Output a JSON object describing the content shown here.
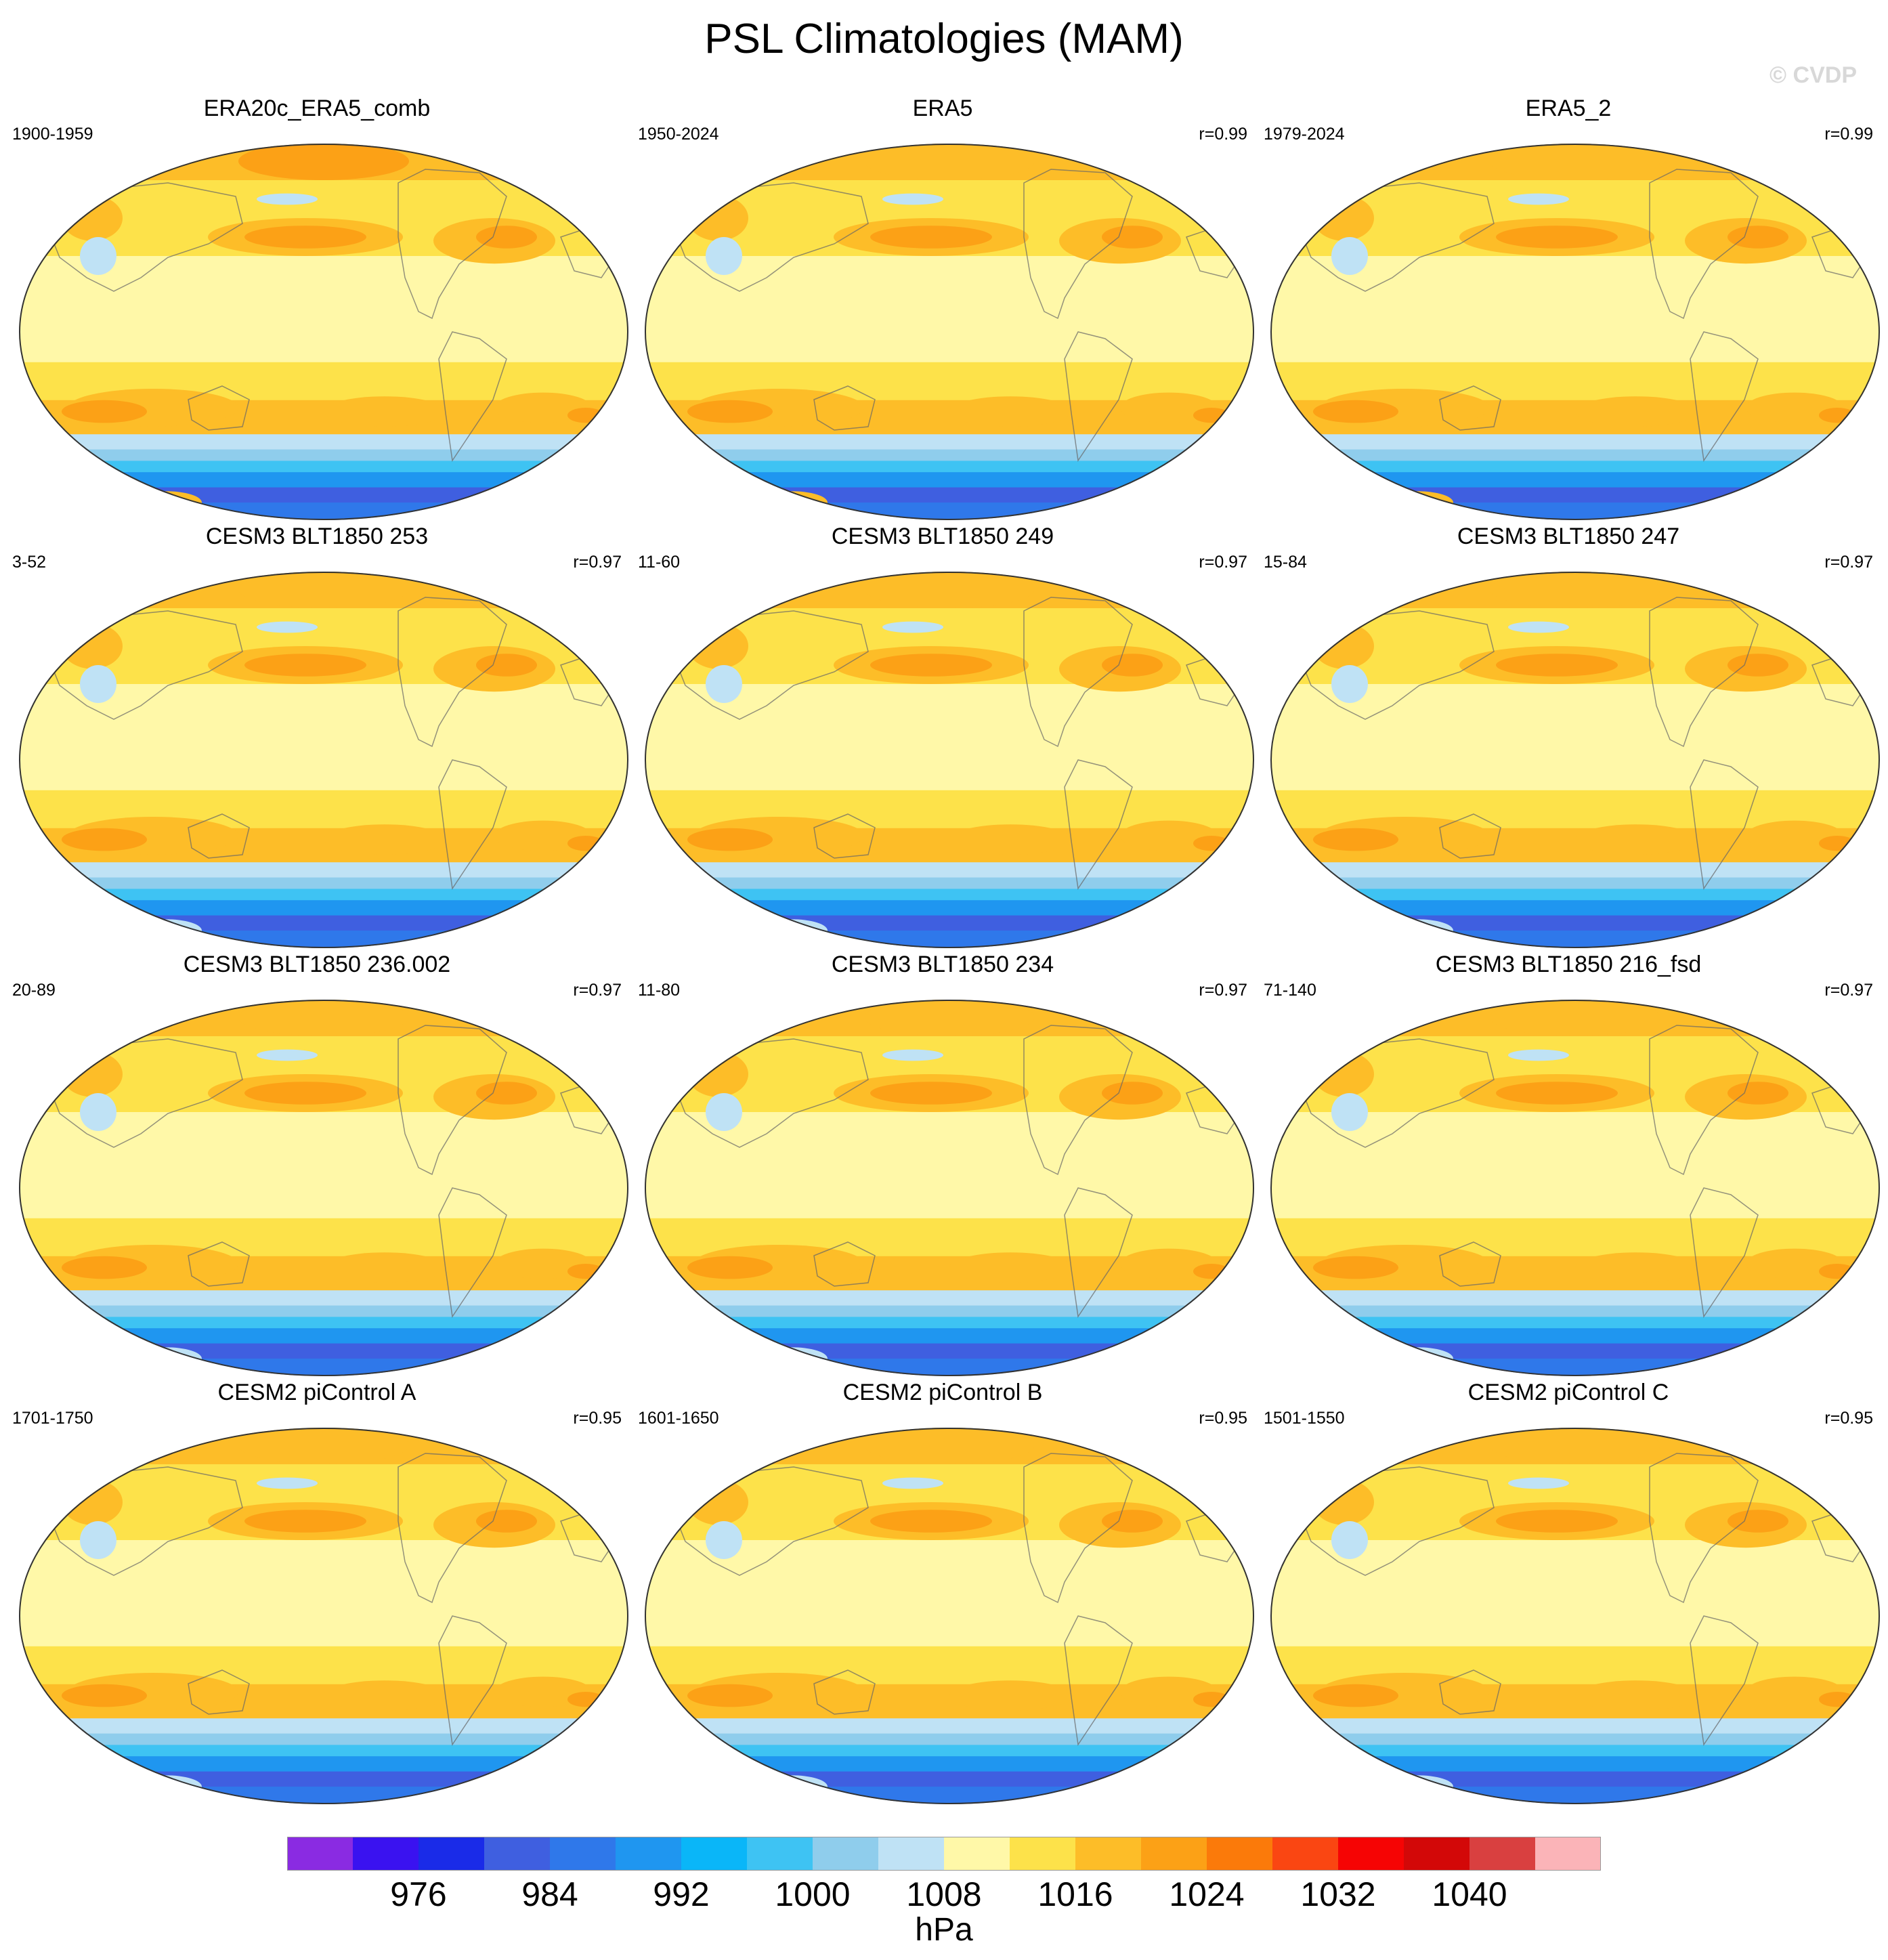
{
  "page": {
    "title": "PSL Climatologies (MAM)",
    "watermark": "© CVDP"
  },
  "chart_data": {
    "type": "map-panels",
    "projection": "Robinson-like global, Pacific-centered",
    "panels": [
      {
        "name": "ERA20c_ERA5_comb",
        "years": "1900-1959",
        "r": ""
      },
      {
        "name": "ERA5",
        "years": "1950-2024",
        "r": "r=0.99"
      },
      {
        "name": "ERA5_2",
        "years": "1979-2024",
        "r": "r=0.99"
      },
      {
        "name": "CESM3 BLT1850 253",
        "years": "3-52",
        "r": "r=0.97"
      },
      {
        "name": "CESM3 BLT1850 249",
        "years": "11-60",
        "r": "r=0.97"
      },
      {
        "name": "CESM3 BLT1850 247",
        "years": "15-84",
        "r": "r=0.97"
      },
      {
        "name": "CESM3 BLT1850 236.002",
        "years": "20-89",
        "r": "r=0.97"
      },
      {
        "name": "CESM3 BLT1850 234",
        "years": "11-80",
        "r": "r=0.97"
      },
      {
        "name": "CESM3 BLT1850 216_fsd",
        "years": "71-140",
        "r": "r=0.97"
      },
      {
        "name": "CESM2 piControl A",
        "years": "1701-1750",
        "r": "r=0.95"
      },
      {
        "name": "CESM2 piControl B",
        "years": "1601-1650",
        "r": "r=0.95"
      },
      {
        "name": "CESM2 piControl C",
        "years": "1501-1550",
        "r": "r=0.95"
      }
    ],
    "colorbar": {
      "units": "hPa",
      "levels": [
        972,
        976,
        980,
        984,
        988,
        992,
        996,
        1000,
        1004,
        1008,
        1012,
        1016,
        1020,
        1024,
        1028,
        1032,
        1036,
        1040,
        1044
      ],
      "labels": [
        "976",
        "984",
        "992",
        "1000",
        "1008",
        "1016",
        "1024",
        "1032",
        "1040"
      ],
      "label_levels": [
        976,
        984,
        992,
        1000,
        1008,
        1016,
        1024,
        1032,
        1040
      ],
      "colors": [
        "#8a2be2",
        "#3a12f0",
        "#1a2be8",
        "#3f5fe0",
        "#2f78ea",
        "#1f96f0",
        "#0ab6f8",
        "#3ec3f3",
        "#8fcdec",
        "#bfe2f5",
        "#fff8a8",
        "#fde24a",
        "#fdbd28",
        "#fca116",
        "#fb7a0a",
        "#fa4612",
        "#f60404",
        "#d30808",
        "#d94040",
        "#fbb4b8"
      ]
    }
  }
}
